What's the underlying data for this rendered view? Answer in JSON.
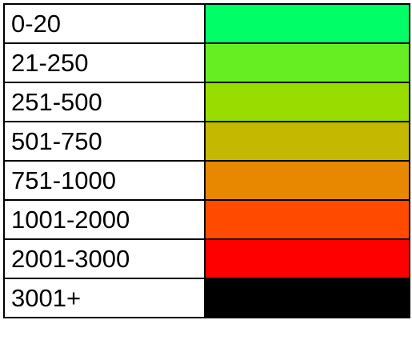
{
  "legend": {
    "rows": [
      {
        "label": "0-20",
        "color": "#00ff66"
      },
      {
        "label": "21-250",
        "color": "#66ee22"
      },
      {
        "label": "251-500",
        "color": "#99dd00"
      },
      {
        "label": "501-750",
        "color": "#c4b800"
      },
      {
        "label": "751-1000",
        "color": "#e88800"
      },
      {
        "label": "1001-2000",
        "color": "#ff4a00"
      },
      {
        "label": "2001-3000",
        "color": "#ff0000"
      },
      {
        "label": "3001+",
        "color": "#000000"
      }
    ]
  }
}
